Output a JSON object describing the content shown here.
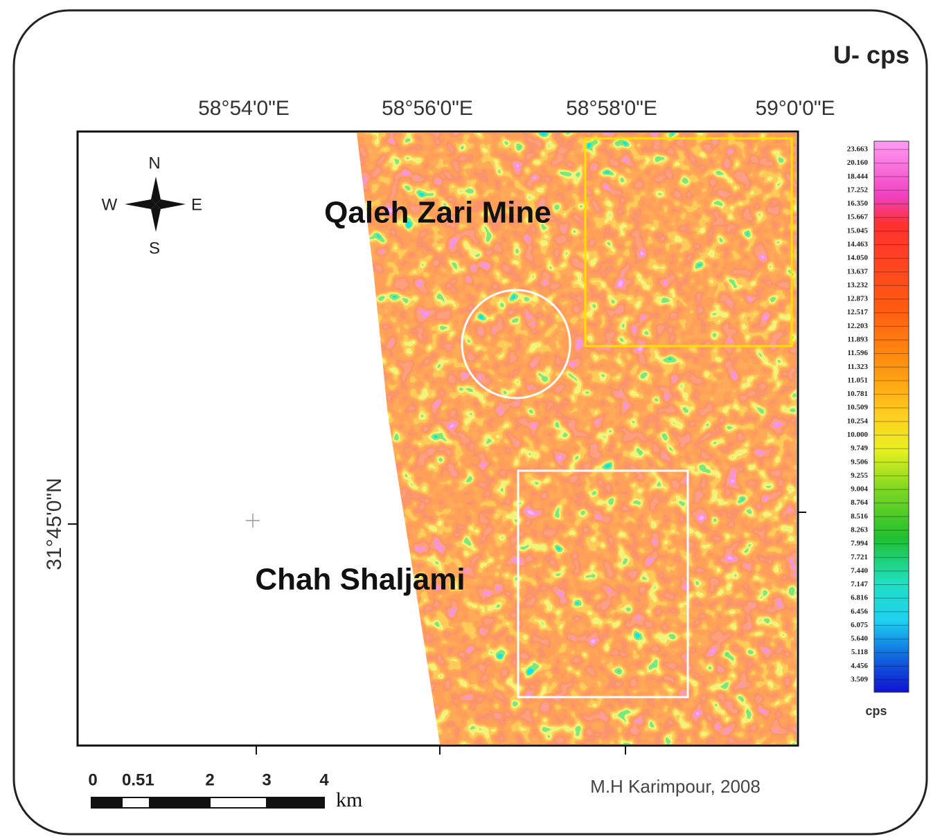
{
  "title": "U- cps",
  "longitude_labels": [
    "58°54'0\"E",
    "58°56'0\"E",
    "58°58'0\"E",
    "59°0'0\"E"
  ],
  "latitude_label": "31°45'0\"N",
  "places": [
    "Qaleh Zari Mine",
    "Chah Shaljami"
  ],
  "compass": {
    "n": "N",
    "e": "E",
    "s": "S",
    "w": "W"
  },
  "legend": {
    "labels": [
      "23.663",
      "20.160",
      "18.444",
      "17.252",
      "16.350",
      "15.667",
      "15.045",
      "14.463",
      "14.050",
      "13.637",
      "13.232",
      "12.873",
      "12.517",
      "12.203",
      "11.893",
      "11.596",
      "11.323",
      "11.051",
      "10.781",
      "10.509",
      "10.254",
      "10.000",
      "9.749",
      "9.506",
      "9.255",
      "9.004",
      "8.764",
      "8.516",
      "8.263",
      "7.994",
      "7.721",
      "7.440",
      "7.147",
      "6.816",
      "6.456",
      "6.075",
      "5.640",
      "5.118",
      "4.456",
      "3.509"
    ],
    "unit": "cps"
  },
  "scale_bar": {
    "labels": [
      "0",
      "0.5",
      "1",
      "2",
      "3",
      "4"
    ],
    "unit": "km"
  },
  "credit": "M.H Karimpour, 2008"
}
